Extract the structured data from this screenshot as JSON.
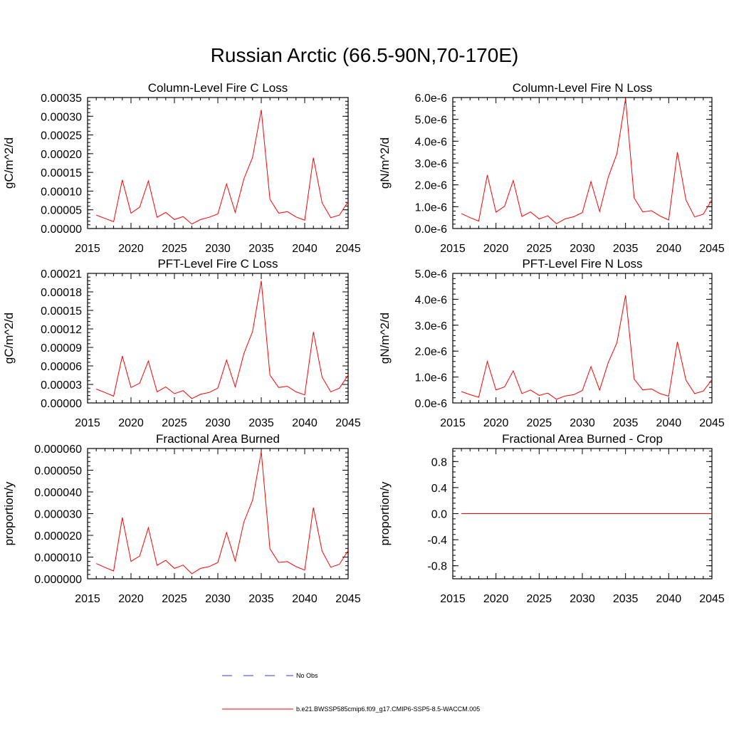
{
  "title": "Russian Arctic (66.5-90N,70-170E)",
  "legend": {
    "obs_label": "No Obs",
    "model_label": "b.e21.BWSSP585cmip6.f09_g17.CMIP6-SSP5-8.5-WACCM.005",
    "obs_color": "#3a3acc",
    "model_color": "#ff0000"
  },
  "chart_data": [
    {
      "type": "line",
      "title": "Column-Level Fire C Loss",
      "ylabel": "gC/m^2/d",
      "xlim": [
        2015,
        2045
      ],
      "ylim": [
        0,
        0.00035
      ],
      "x_ticks": [
        "2015",
        "2020",
        "2025",
        "2030",
        "2035",
        "2040",
        "2045"
      ],
      "y_ticks": [
        "0.00000",
        "0.00005",
        "0.00010",
        "0.00015",
        "0.00020",
        "0.00025",
        "0.00030",
        "0.00035"
      ],
      "x": [
        2016,
        2017,
        2018,
        2019,
        2020,
        2021,
        2022,
        2023,
        2024,
        2025,
        2026,
        2027,
        2028,
        2029,
        2030,
        2031,
        2032,
        2033,
        2034,
        2035,
        2036,
        2037,
        2038,
        2039,
        2040,
        2041,
        2042,
        2043,
        2044,
        2045
      ],
      "series": [
        {
          "name": "b.e21.BWSSP585cmip6.f09_g17.CMIP6-SSP5-8.5-WACCM.005",
          "color": "#ff0000",
          "values": [
            3.6e-05,
            2.7e-05,
            1.8e-05,
            0.00013,
            4.1e-05,
            5.7e-05,
            0.000127,
            3e-05,
            4.3e-05,
            2.4e-05,
            3.2e-05,
            1.2e-05,
            2.4e-05,
            3e-05,
            3.9e-05,
            0.000119,
            4.3e-05,
            0.000133,
            0.00019,
            0.000317,
            7.8e-05,
            4.1e-05,
            4.5e-05,
            3.1e-05,
            2.2e-05,
            0.000189,
            6.9e-05,
            2.9e-05,
            3.6e-05,
            7.2e-05
          ]
        }
      ]
    },
    {
      "type": "line",
      "title": "Column-Level Fire N Loss",
      "ylabel": "gN/m^2/d",
      "xlim": [
        2015,
        2045
      ],
      "ylim": [
        0,
        6e-06
      ],
      "x_ticks": [
        "2015",
        "2020",
        "2025",
        "2030",
        "2035",
        "2040",
        "2045"
      ],
      "y_ticks": [
        "0.0e-6",
        "1.0e-6",
        "2.0e-6",
        "3.0e-6",
        "4.0e-6",
        "5.0e-6",
        "6.0e-6"
      ],
      "x": [
        2016,
        2017,
        2018,
        2019,
        2020,
        2021,
        2022,
        2023,
        2024,
        2025,
        2026,
        2027,
        2028,
        2029,
        2030,
        2031,
        2032,
        2033,
        2034,
        2035,
        2036,
        2037,
        2038,
        2039,
        2040,
        2041,
        2042,
        2043,
        2044,
        2045
      ],
      "series": [
        {
          "name": "b.e21.BWSSP585cmip6.f09_g17.CMIP6-SSP5-8.5-WACCM.005",
          "color": "#ff0000",
          "values": [
            6.8e-07,
            5e-07,
            3.4e-07,
            2.45e-06,
            7.5e-07,
            1.02e-06,
            2.2e-06,
            5.5e-07,
            7.6e-07,
            4.4e-07,
            5.8e-07,
            2.2e-07,
            4.4e-07,
            5.4e-07,
            7.3e-07,
            2.15e-06,
            7.8e-07,
            2.35e-06,
            3.42e-06,
            5.95e-06,
            1.4e-06,
            7.6e-07,
            8.2e-07,
            5.7e-07,
            3.9e-07,
            3.5e-06,
            1.3e-06,
            5.3e-07,
            6.6e-07,
            1.32e-06
          ]
        }
      ]
    },
    {
      "type": "line",
      "title": "PFT-Level Fire C Loss",
      "ylabel": "gC/m^2/d",
      "xlim": [
        2015,
        2045
      ],
      "ylim": [
        0,
        0.00021
      ],
      "x_ticks": [
        "2015",
        "2020",
        "2025",
        "2030",
        "2035",
        "2040",
        "2045"
      ],
      "y_ticks": [
        "0.00000",
        "0.00003",
        "0.00006",
        "0.00009",
        "0.00012",
        "0.00015",
        "0.00018",
        "0.00021"
      ],
      "x": [
        2016,
        2017,
        2018,
        2019,
        2020,
        2021,
        2022,
        2023,
        2024,
        2025,
        2026,
        2027,
        2028,
        2029,
        2030,
        2031,
        2032,
        2033,
        2034,
        2035,
        2036,
        2037,
        2038,
        2039,
        2040,
        2041,
        2042,
        2043,
        2044,
        2045
      ],
      "series": [
        {
          "name": "b.e21.BWSSP585cmip6.f09_g17.CMIP6-SSP5-8.5-WACCM.005",
          "color": "#ff0000",
          "values": [
            2.25e-05,
            1.7e-05,
            1.1e-05,
            7.6e-05,
            2.5e-05,
            3.2e-05,
            6.8e-05,
            1.8e-05,
            2.6e-05,
            1.5e-05,
            2e-05,
            7e-06,
            1.4e-05,
            1.7e-05,
            2.4e-05,
            6.95e-05,
            2.6e-05,
            8e-05,
            0.000116,
            0.000198,
            4.5e-05,
            2.5e-05,
            2.7e-05,
            1.8e-05,
            1.3e-05,
            0.000115,
            4.2e-05,
            1.8e-05,
            2.4e-05,
            4.5e-05
          ]
        }
      ]
    },
    {
      "type": "line",
      "title": "PFT-Level Fire N Loss",
      "ylabel": "gN/m^2/d",
      "xlim": [
        2015,
        2045
      ],
      "ylim": [
        0,
        5e-06
      ],
      "x_ticks": [
        "2015",
        "2020",
        "2025",
        "2030",
        "2035",
        "2040",
        "2045"
      ],
      "y_ticks": [
        "0.0e-6",
        "1.0e-6",
        "2.0e-6",
        "3.0e-6",
        "4.0e-6",
        "5.0e-6"
      ],
      "x": [
        2016,
        2017,
        2018,
        2019,
        2020,
        2021,
        2022,
        2023,
        2024,
        2025,
        2026,
        2027,
        2028,
        2029,
        2030,
        2031,
        2032,
        2033,
        2034,
        2035,
        2036,
        2037,
        2038,
        2039,
        2040,
        2041,
        2042,
        2043,
        2044,
        2045
      ],
      "series": [
        {
          "name": "b.e21.BWSSP585cmip6.f09_g17.CMIP6-SSP5-8.5-WACCM.005",
          "color": "#ff0000",
          "values": [
            4.4e-07,
            3.2e-07,
            2.2e-07,
            1.6e-06,
            5e-07,
            6.2e-07,
            1.24e-06,
            3.6e-07,
            5e-07,
            2.9e-07,
            3.8e-07,
            1.4e-07,
            2.7e-07,
            3.2e-07,
            4.8e-07,
            1.4e-06,
            5e-07,
            1.56e-06,
            2.32e-06,
            4.15e-06,
            9.2e-07,
            5e-07,
            5.4e-07,
            3.6e-07,
            2.6e-07,
            2.36e-06,
            8.8e-07,
            3.6e-07,
            4.6e-07,
            9e-07
          ]
        }
      ]
    },
    {
      "type": "line",
      "title": "Fractional Area Burned",
      "ylabel": "proportion/y",
      "xlim": [
        2015,
        2045
      ],
      "ylim": [
        0,
        6e-05
      ],
      "x_ticks": [
        "2015",
        "2020",
        "2025",
        "2030",
        "2035",
        "2040",
        "2045"
      ],
      "y_ticks": [
        "0.000000",
        "0.000010",
        "0.000020",
        "0.000030",
        "0.000040",
        "0.000050",
        "0.000060"
      ],
      "x": [
        2016,
        2017,
        2018,
        2019,
        2020,
        2021,
        2022,
        2023,
        2024,
        2025,
        2026,
        2027,
        2028,
        2029,
        2030,
        2031,
        2032,
        2033,
        2034,
        2035,
        2036,
        2037,
        2038,
        2039,
        2040,
        2041,
        2042,
        2043,
        2044,
        2045
      ],
      "series": [
        {
          "name": "b.e21.BWSSP585cmip6.f09_g17.CMIP6-SSP5-8.5-WACCM.005",
          "color": "#ff0000",
          "values": [
            7e-06,
            5.2e-06,
            3.6e-06,
            2.82e-05,
            8e-06,
            1.05e-05,
            2.35e-05,
            6.2e-06,
            8.5e-06,
            4.8e-06,
            6.3e-06,
            2.3e-06,
            4.8e-06,
            5.6e-06,
            7.5e-06,
            2.13e-05,
            8.2e-06,
            2.62e-05,
            3.62e-05,
            5.85e-05,
            1.38e-05,
            7.5e-06,
            7.9e-06,
            5.6e-06,
            4e-06,
            3.28e-05,
            1.28e-05,
            5.3e-06,
            6.7e-06,
            1.3e-05
          ]
        }
      ]
    },
    {
      "type": "line",
      "title": "Fractional Area Burned - Crop",
      "ylabel": "proportion/y",
      "xlim": [
        2015,
        2045
      ],
      "ylim": [
        -1.0,
        1.0
      ],
      "x_ticks": [
        "2015",
        "2020",
        "2025",
        "2030",
        "2035",
        "2040",
        "2045"
      ],
      "y_ticks": [
        "-0.8",
        "-0.4",
        "0.0",
        "0.4",
        "0.8"
      ],
      "y_tick_values": [
        -0.8,
        -0.4,
        0.0,
        0.4,
        0.8
      ],
      "x": [
        2016,
        2017,
        2018,
        2019,
        2020,
        2021,
        2022,
        2023,
        2024,
        2025,
        2026,
        2027,
        2028,
        2029,
        2030,
        2031,
        2032,
        2033,
        2034,
        2035,
        2036,
        2037,
        2038,
        2039,
        2040,
        2041,
        2042,
        2043,
        2044,
        2045
      ],
      "series": [
        {
          "name": "b.e21.BWSSP585cmip6.f09_g17.CMIP6-SSP5-8.5-WACCM.005",
          "color": "#ff0000",
          "values": [
            0,
            0,
            0,
            0,
            0,
            0,
            0,
            0,
            0,
            0,
            0,
            0,
            0,
            0,
            0,
            0,
            0,
            0,
            0,
            0,
            0,
            0,
            0,
            0,
            0,
            0,
            0,
            0,
            0,
            0
          ]
        }
      ]
    }
  ]
}
